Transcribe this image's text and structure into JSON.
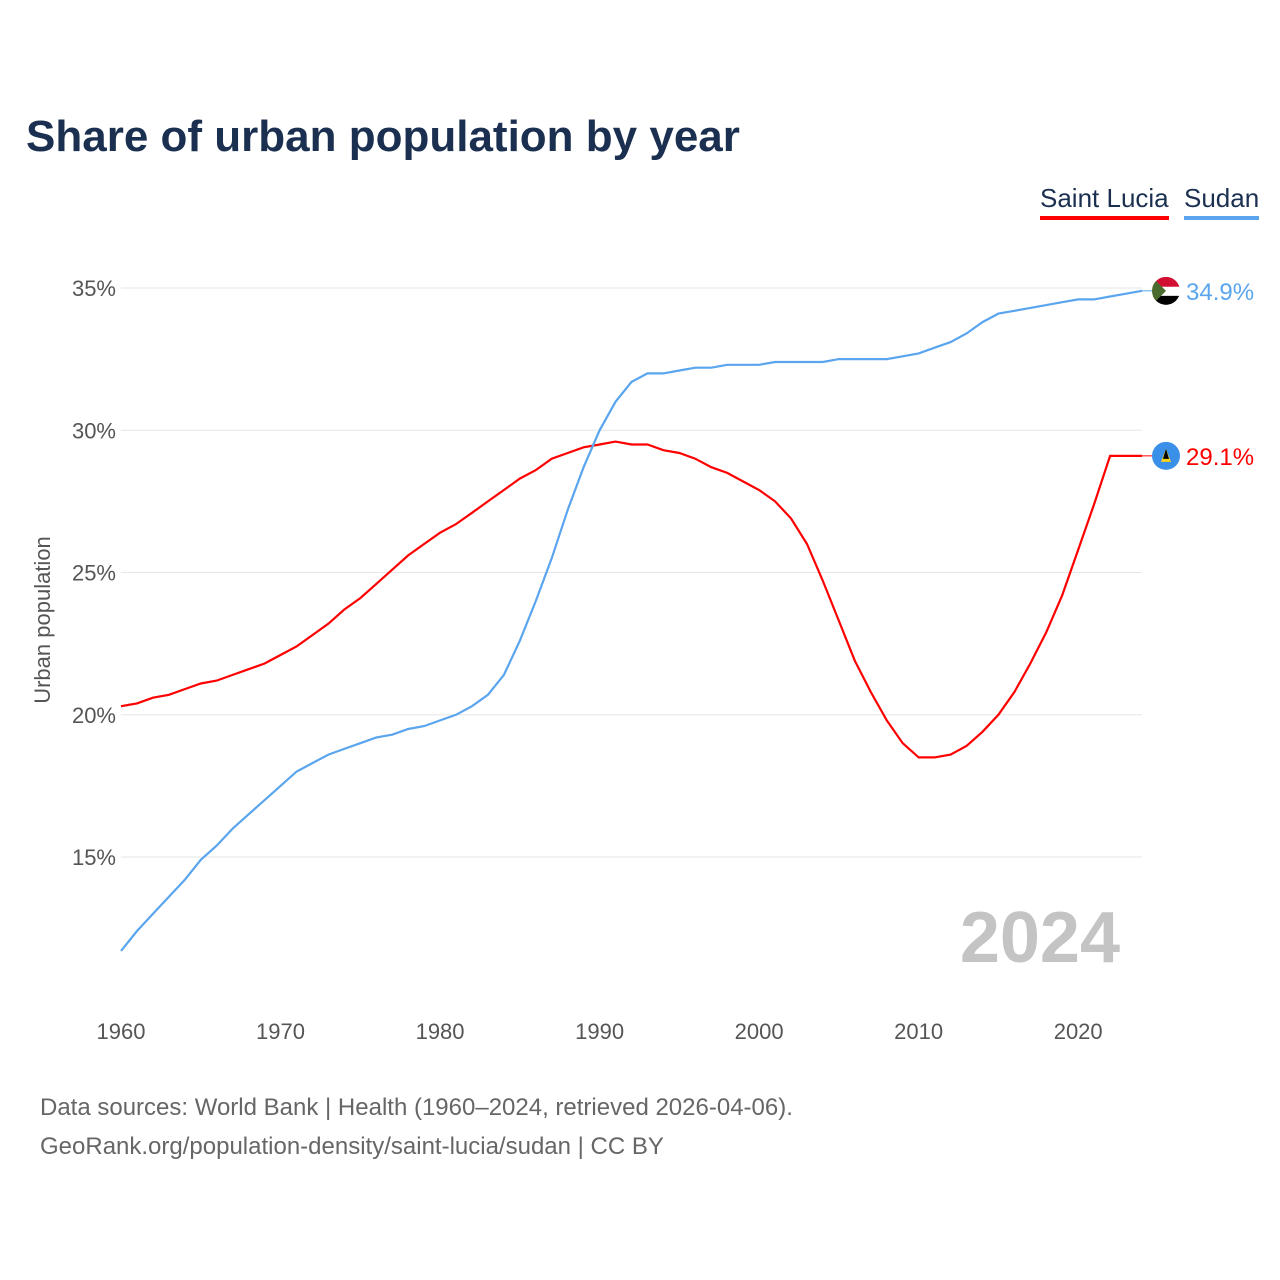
{
  "chart_data": {
    "type": "line",
    "title": "Share of urban population by year",
    "ylabel": "Urban population",
    "xlabel": "",
    "xlim": [
      1960,
      2024
    ],
    "ylim": [
      10.5,
      37
    ],
    "yticks": [
      15,
      20,
      25,
      30,
      35
    ],
    "ytick_labels": [
      "15%",
      "20%",
      "25%",
      "30%",
      "35%"
    ],
    "xticks": [
      1960,
      1970,
      1980,
      1990,
      2000,
      2010,
      2020
    ],
    "xtick_labels": [
      "1960",
      "1970",
      "1980",
      "1990",
      "2000",
      "2010",
      "2020"
    ],
    "grid": true,
    "legend_position": "top-right",
    "year_label": "2024",
    "series": [
      {
        "name": "Saint Lucia",
        "color": "#ff0000",
        "end_label": "29.1%",
        "start_year": 1960,
        "values": [
          20.3,
          20.4,
          20.6,
          20.7,
          20.9,
          21.1,
          21.2,
          21.4,
          21.6,
          21.8,
          22.1,
          22.4,
          22.8,
          23.2,
          23.7,
          24.1,
          24.6,
          25.1,
          25.6,
          26.0,
          26.4,
          26.7,
          27.1,
          27.5,
          27.9,
          28.3,
          28.6,
          29.0,
          29.2,
          29.4,
          29.5,
          29.6,
          29.5,
          29.5,
          29.3,
          29.2,
          29.0,
          28.7,
          28.5,
          28.2,
          27.9,
          27.5,
          26.9,
          26.0,
          24.7,
          23.3,
          21.9,
          20.8,
          19.8,
          19.0,
          18.5,
          18.5,
          18.6,
          18.9,
          19.4,
          20.0,
          20.8,
          21.8,
          22.9,
          24.2,
          25.8,
          27.4,
          29.1,
          29.1,
          29.1
        ]
      },
      {
        "name": "Sudan",
        "color": "#5aa5ee",
        "end_label": "34.9%",
        "start_year": 1960,
        "values": [
          11.7,
          12.4,
          13.0,
          13.6,
          14.2,
          14.9,
          15.4,
          16.0,
          16.5,
          17.0,
          17.5,
          18.0,
          18.3,
          18.6,
          18.8,
          19.0,
          19.2,
          19.3,
          19.5,
          19.6,
          19.8,
          20.0,
          20.3,
          20.7,
          21.4,
          22.6,
          24.0,
          25.5,
          27.2,
          28.7,
          30.0,
          31.0,
          31.7,
          32.0,
          32.0,
          32.1,
          32.2,
          32.2,
          32.3,
          32.3,
          32.3,
          32.4,
          32.4,
          32.4,
          32.4,
          32.5,
          32.5,
          32.5,
          32.5,
          32.6,
          32.7,
          32.9,
          33.1,
          33.4,
          33.8,
          34.1,
          34.2,
          34.3,
          34.4,
          34.5,
          34.6,
          34.6,
          34.7,
          34.8,
          34.9
        ]
      }
    ]
  },
  "source": {
    "line1": "Data sources: World Bank | Health (1960–2024, retrieved 2026-04-06).",
    "line2": "GeoRank.org/population-density/saint-lucia/sudan | CC BY"
  }
}
